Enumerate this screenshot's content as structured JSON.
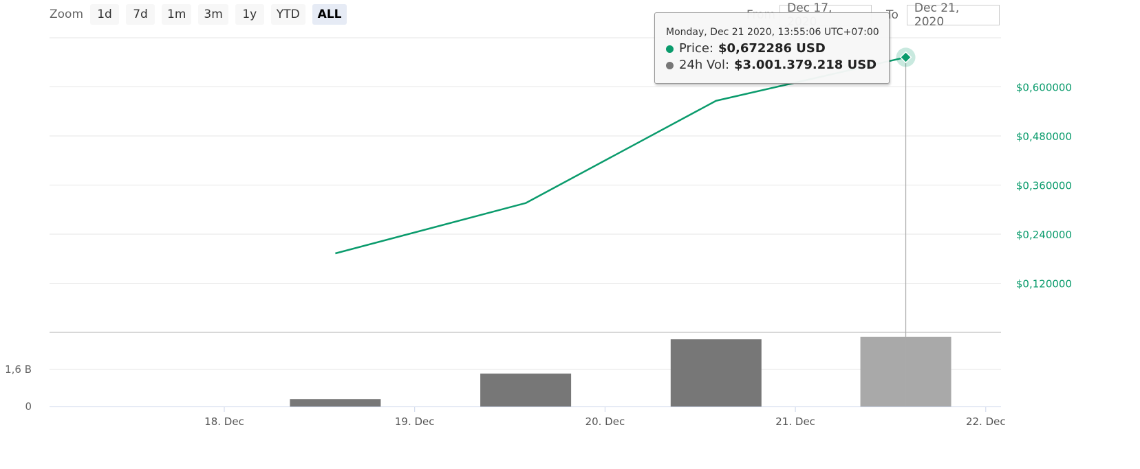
{
  "toolbar": {
    "zoom_label": "Zoom",
    "buttons": [
      "1d",
      "7d",
      "1m",
      "3m",
      "1y",
      "YTD",
      "ALL"
    ],
    "active": "ALL"
  },
  "range": {
    "from_label": "From",
    "from_value": "Dec 17, 2020",
    "to_label": "To",
    "to_value": "Dec 21, 2020"
  },
  "tooltip": {
    "header": "Monday, Dec 21 2020, 13:55:06 UTC+07:00",
    "price_label": "Price:",
    "price_value": "$0,672286 USD",
    "vol_label": "24h Vol:",
    "vol_value": "$3.001.379.218 USD"
  },
  "colors": {
    "price_line": "#0a9b6c",
    "volume_bar": "#777777",
    "volume_bar_highlight": "#a9a9a9",
    "price_axis_text": "#0a9b6c"
  },
  "chart_data": {
    "type": "line",
    "x_axis": {
      "type": "date",
      "ticks": [
        "18. Dec",
        "19. Dec",
        "20. Dec",
        "21. Dec",
        "22. Dec"
      ],
      "range": [
        "2020-12-17",
        "2020-12-22"
      ]
    },
    "price": {
      "name": "Price",
      "unit": "USD",
      "axis_ticks": [
        "$0,120000",
        "$0,240000",
        "$0,360000",
        "$0,480000",
        "$0,600000"
      ],
      "ylim": [
        0.0,
        0.72
      ],
      "points": [
        {
          "x": "2020-12-18 14:00",
          "y": 0.193
        },
        {
          "x": "2020-12-19 14:00",
          "y": 0.316
        },
        {
          "x": "2020-12-20 14:00",
          "y": 0.566
        },
        {
          "x": "2020-12-21 13:55",
          "y": 0.672286
        }
      ]
    },
    "volume": {
      "name": "24h Vol",
      "unit": "USD",
      "type": "bar",
      "axis_ticks": [
        "0",
        "1,6 B"
      ],
      "ylim": [
        0,
        3.2
      ],
      "bars": [
        {
          "x": "2020-12-18 14:00",
          "y": 0.32
        },
        {
          "x": "2020-12-19 14:00",
          "y": 1.42
        },
        {
          "x": "2020-12-20 14:00",
          "y": 2.9
        },
        {
          "x": "2020-12-21 13:55",
          "y": 3.0014
        }
      ]
    },
    "hovered_point": {
      "x": "2020-12-21 13:55"
    },
    "grid": true
  }
}
